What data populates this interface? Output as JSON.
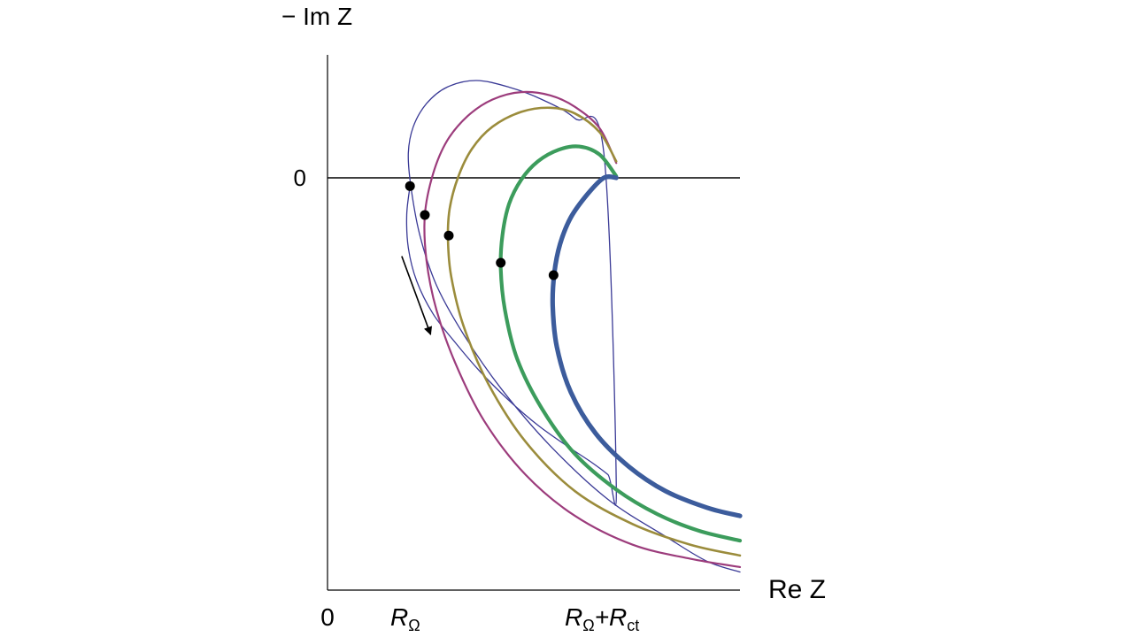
{
  "chart_data": {
    "type": "line",
    "title": "",
    "xlabel": "Re Z",
    "ylabel": "− Im Z",
    "x_ticks": [
      {
        "value": 0,
        "main": "0",
        "sub": ""
      },
      {
        "value": 1,
        "main": "R",
        "sub": "Ω"
      },
      {
        "value": 3.5,
        "main": "R",
        "sub": "Ω",
        "plus": "+R",
        "sub2": "ct"
      }
    ],
    "y_ticks": [
      {
        "value": 0,
        "label": "0"
      }
    ],
    "xlim": [
      0,
      5
    ],
    "ylim": [
      -5,
      1.2
    ],
    "grid": false,
    "legend": "none",
    "series": [
      {
        "color": "#3a3a96",
        "width": 1.3,
        "x": [
          1.0,
          0.96,
          0.98,
          1.08,
          1.28,
          1.55,
          1.85,
          2.2,
          2.55,
          2.9,
          3.2,
          3.4,
          3.5,
          3.35,
          3.0,
          2.6,
          2.2,
          1.8,
          1.45,
          1.2,
          1.04,
          0.98,
          1.01,
          1.12,
          1.32,
          1.65,
          2.1,
          2.7,
          3.4,
          4.1,
          4.6,
          5.0
        ],
        "y": [
          -0.1,
          -0.45,
          -0.85,
          -1.25,
          -1.65,
          -2.0,
          -2.35,
          -2.7,
          -3.0,
          -3.25,
          -3.45,
          -3.6,
          -3.7,
          0.3,
          0.72,
          0.95,
          1.1,
          1.18,
          1.1,
          0.9,
          0.62,
          0.3,
          -0.1,
          -0.7,
          -1.3,
          -1.9,
          -2.55,
          -3.25,
          -3.9,
          -4.35,
          -4.65,
          -4.78
        ]
      },
      {
        "color": "#9c3c7c",
        "width": 2.2,
        "x": [
          3.5,
          3.3,
          3.0,
          2.7,
          2.35,
          2.0,
          1.7,
          1.45,
          1.28,
          1.18,
          1.2,
          1.32,
          1.55,
          1.9,
          2.4,
          3.0,
          3.7,
          4.4,
          5.0
        ],
        "y": [
          0.18,
          0.6,
          0.86,
          1.0,
          1.04,
          0.95,
          0.75,
          0.45,
          0.05,
          -0.45,
          -1.0,
          -1.6,
          -2.25,
          -2.95,
          -3.6,
          -4.1,
          -4.45,
          -4.62,
          -4.72
        ]
      },
      {
        "color": "#9b8c3c",
        "width": 2.6,
        "x": [
          3.5,
          3.3,
          3.0,
          2.7,
          2.35,
          2.0,
          1.75,
          1.58,
          1.48,
          1.46,
          1.5,
          1.65,
          1.95,
          2.4,
          3.0,
          3.7,
          4.4,
          5.0
        ],
        "y": [
          0.2,
          0.55,
          0.78,
          0.85,
          0.8,
          0.62,
          0.35,
          0.0,
          -0.38,
          -0.75,
          -1.2,
          -1.8,
          -2.5,
          -3.2,
          -3.8,
          -4.2,
          -4.45,
          -4.58
        ]
      },
      {
        "color": "#3c9c5c",
        "width": 4.2,
        "x": [
          3.5,
          3.3,
          3.05,
          2.8,
          2.55,
          2.35,
          2.2,
          2.12,
          2.1,
          2.15,
          2.3,
          2.6,
          3.0,
          3.5,
          4.0,
          4.5,
          5.0
        ],
        "y": [
          0.02,
          0.28,
          0.38,
          0.34,
          0.2,
          -0.02,
          -0.32,
          -0.7,
          -1.1,
          -1.6,
          -2.2,
          -2.8,
          -3.35,
          -3.78,
          -4.08,
          -4.28,
          -4.4
        ]
      },
      {
        "color": "#3c5c9c",
        "width": 5.2,
        "x": [
          3.5,
          3.35,
          3.15,
          2.95,
          2.82,
          2.75,
          2.73,
          2.78,
          2.95,
          3.25,
          3.65,
          4.1,
          4.6,
          5.0
        ],
        "y": [
          0.0,
          0.0,
          -0.2,
          -0.48,
          -0.8,
          -1.15,
          -1.55,
          -2.05,
          -2.6,
          -3.1,
          -3.5,
          -3.8,
          -4.0,
          -4.1
        ]
      }
    ],
    "markers": [
      {
        "x": 1.0,
        "y": -0.1
      },
      {
        "x": 1.18,
        "y": -0.45
      },
      {
        "x": 1.47,
        "y": -0.7
      },
      {
        "x": 2.1,
        "y": -1.03
      },
      {
        "x": 2.74,
        "y": -1.18
      }
    ],
    "annotations": [
      {
        "type": "arrow",
        "from": [
          0.9,
          -0.95
        ],
        "to": [
          1.25,
          -1.9
        ],
        "meaning": "direction of increasing frequency"
      }
    ],
    "colors": {
      "axis": "#000000",
      "background": "#ffffff",
      "marker": "#000000"
    }
  }
}
